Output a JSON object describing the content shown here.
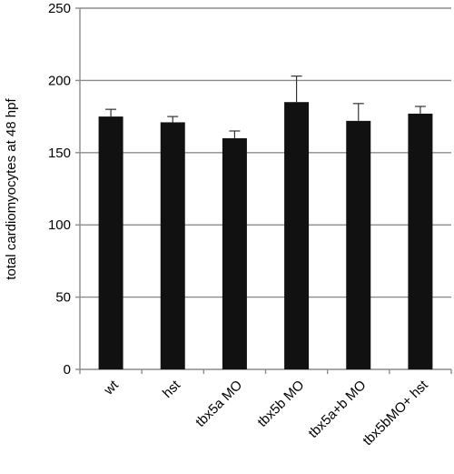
{
  "chart_data": {
    "type": "bar",
    "title": "",
    "xlabel": "",
    "ylabel": "total cardiomyocytes at 48 hpf",
    "categories": [
      "wt",
      "hst",
      "tbx5a MO",
      "tbx5b MO",
      "tbx5a+b MO",
      "tbx5bMO+ hst"
    ],
    "values": [
      175,
      171,
      160,
      185,
      172,
      177
    ],
    "error_upper": [
      5,
      4,
      5,
      18,
      12,
      5
    ],
    "ylim": [
      0,
      250
    ],
    "yticks": [
      0,
      50,
      100,
      150,
      200,
      250
    ],
    "grid": true,
    "legend": "none",
    "colors": {
      "bar": "#111111",
      "grid": "#8c8c8c",
      "axis": "#8c8c8c"
    }
  }
}
